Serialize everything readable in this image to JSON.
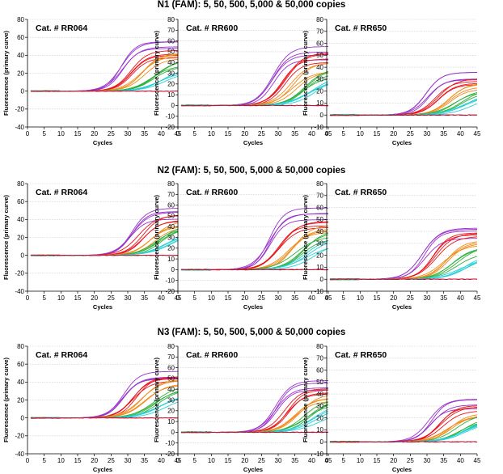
{
  "chart_data": {
    "type": "line",
    "rows": [
      {
        "title": "N1 (FAM): 5, 50, 500, 5,000 & 50,000 copies",
        "panels": [
          {
            "label": "Cat. # RR064",
            "ylim": [
              -40,
              80
            ],
            "yticks": [
              -40,
              -20,
              0,
              20,
              40,
              60,
              80
            ],
            "plateau": 50,
            "ct": [
              28.5,
              31.5,
              34.5,
              37.5,
              40.5
            ],
            "neg_y": 0
          },
          {
            "label": "Cat. # RR600",
            "ylim": [
              -20,
              80
            ],
            "yticks": [
              -20,
              -10,
              0,
              10,
              20,
              30,
              40,
              50,
              60,
              70,
              80
            ],
            "plateau": 50,
            "ct": [
              28.5,
              31.5,
              34.5,
              37.5,
              40.5
            ],
            "neg_y": 0
          },
          {
            "label": "Cat. # RR650",
            "ylim": [
              -10,
              80
            ],
            "yticks": [
              -10,
              0,
              10,
              20,
              30,
              40,
              50,
              60,
              70,
              80
            ],
            "plateau": 32,
            "ct": [
              30,
              33,
              36.5,
              39.5,
              42.5
            ],
            "neg_y": 0
          }
        ]
      },
      {
        "title": "N2 (FAM): 5, 50, 500, 5,000 & 50,000 copies",
        "panels": [
          {
            "label": "Cat. # RR064",
            "ylim": [
              -40,
              80
            ],
            "yticks": [
              -40,
              -20,
              0,
              20,
              40,
              60,
              80
            ],
            "plateau": 48,
            "ct": [
              31,
              34,
              37,
              39.5,
              42
            ],
            "neg_y": 0
          },
          {
            "label": "Cat. # RR600",
            "ylim": [
              -20,
              80
            ],
            "yticks": [
              -20,
              -10,
              0,
              10,
              20,
              30,
              40,
              50,
              60,
              70,
              80
            ],
            "plateau": 53,
            "ct": [
              27.5,
              30.5,
              33.5,
              36.5,
              39.5
            ],
            "neg_y": 0
          },
          {
            "label": "Cat. # RR650",
            "ylim": [
              -10,
              80
            ],
            "yticks": [
              -10,
              0,
              10,
              20,
              30,
              40,
              50,
              60,
              70,
              80
            ],
            "plateau": 40,
            "ct": [
              29,
              32.5,
              35.5,
              38.5,
              41.5
            ],
            "neg_y": 0
          }
        ]
      },
      {
        "title": "N3 (FAM): 5, 50, 500, 5,000 & 50,000 copies",
        "panels": [
          {
            "label": "Cat. # RR064",
            "ylim": [
              -40,
              80
            ],
            "yticks": [
              -40,
              -20,
              0,
              20,
              40,
              60,
              80
            ],
            "plateau": 52,
            "ct": [
              29,
              32,
              35,
              38,
              41
            ],
            "neg_y": 0
          },
          {
            "label": "Cat. # RR600",
            "ylim": [
              -20,
              80
            ],
            "yticks": [
              -20,
              -10,
              0,
              10,
              20,
              30,
              40,
              50,
              60,
              70,
              80
            ],
            "plateau": 46,
            "ct": [
              29.5,
              32.5,
              35.5,
              38.5,
              41.5
            ],
            "neg_y": 0
          },
          {
            "label": "Cat. # RR650",
            "ylim": [
              -10,
              80
            ],
            "yticks": [
              -10,
              0,
              10,
              20,
              30,
              40,
              50,
              60,
              70,
              80
            ],
            "plateau": 33,
            "ct": [
              31,
              34,
              37,
              40,
              42.5
            ],
            "neg_y": 0
          }
        ]
      }
    ],
    "xlabel": "Cycles",
    "ylabel": "Fluorescence (primary curve)",
    "xlim": [
      0,
      45
    ],
    "xticks": [
      0,
      5,
      10,
      15,
      20,
      25,
      30,
      35,
      40,
      45
    ],
    "grid": true,
    "series": [
      {
        "copies": 50000,
        "color": "#9933cc"
      },
      {
        "copies": 5000,
        "color": "#e8161c"
      },
      {
        "copies": 500,
        "color": "#f08c1a"
      },
      {
        "copies": 50,
        "color": "#2fb03c"
      },
      {
        "copies": 5,
        "color": "#2ad0d6"
      },
      {
        "copies": 0,
        "color": "#c8102e"
      }
    ]
  }
}
